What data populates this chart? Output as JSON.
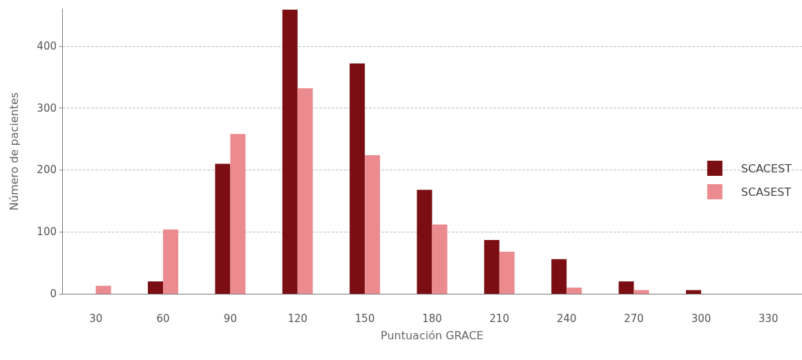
{
  "chart_data": {
    "type": "bar",
    "xlabel": "Puntuación GRACE",
    "ylabel": "Número de pacientes",
    "categories": [
      "30",
      "60",
      "90",
      "120",
      "150",
      "180",
      "210",
      "240",
      "270",
      "300",
      "330"
    ],
    "series": [
      {
        "name": "SCACEST",
        "color": "#7a0e12",
        "values": [
          0,
          20,
          210,
          459,
          372,
          168,
          87,
          56,
          20,
          6,
          0
        ]
      },
      {
        "name": "SCASEST",
        "color": "#ec8b8f",
        "values": [
          13,
          104,
          258,
          332,
          224,
          112,
          68,
          10,
          6,
          0,
          0
        ]
      }
    ],
    "ylim": [
      0,
      460
    ],
    "yticks": [
      0,
      100,
      200,
      300,
      400
    ],
    "grid": "y",
    "legend": "right"
  }
}
